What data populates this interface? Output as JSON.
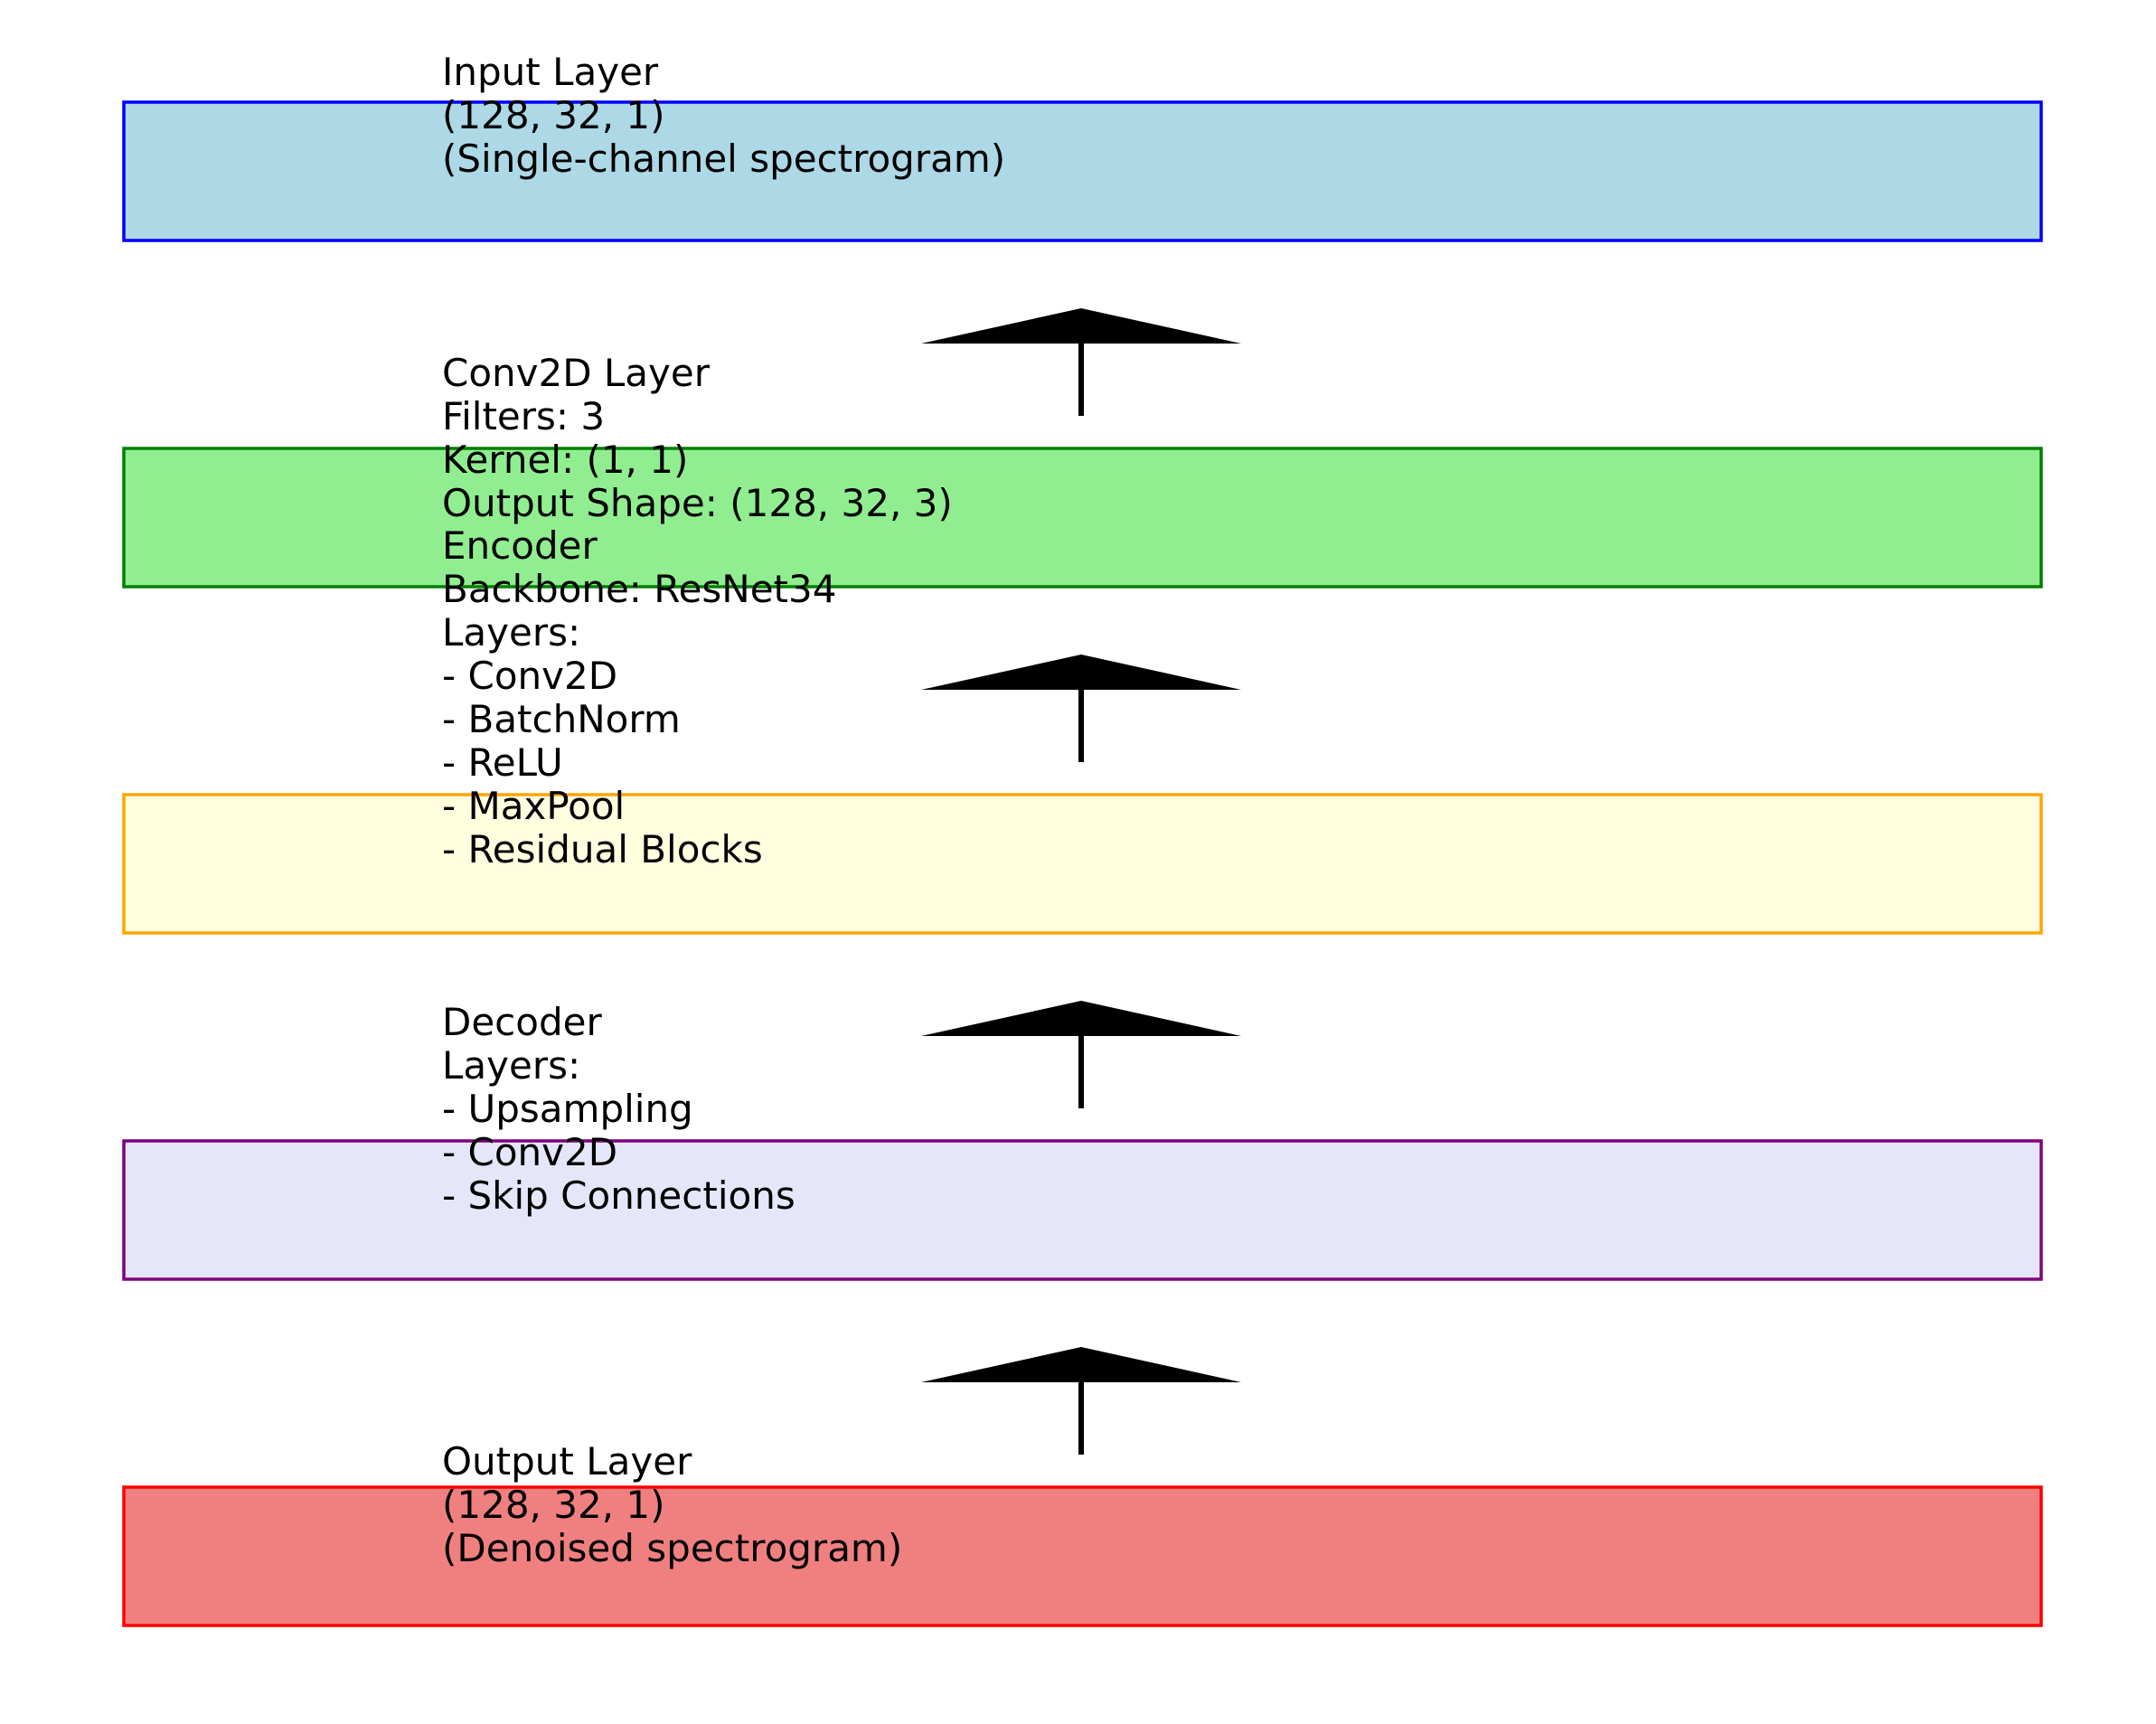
{
  "blocks": [
    {
      "id": "input-layer",
      "fill": "#add8e6",
      "stroke": "#0000ff",
      "lines": [
        "Input Layer",
        "(128, 32, 1)",
        "(Single-channel spectrogram)"
      ]
    },
    {
      "id": "conv2d-layer",
      "fill": "#90ee90",
      "stroke": "#008000",
      "lines": [
        "Conv2D Layer",
        "Filters: 3",
        "Kernel: (1, 1)",
        "Output Shape: (128, 32, 3)"
      ]
    },
    {
      "id": "encoder",
      "fill": "#ffffe0",
      "stroke": "#ffa500",
      "lines": [
        "Encoder",
        "Backbone: ResNet34",
        "Layers:",
        "- Conv2D",
        "- BatchNorm",
        "- ReLU",
        "- MaxPool",
        "- Residual Blocks"
      ]
    },
    {
      "id": "decoder",
      "fill": "#e6e6fa",
      "stroke": "#800080",
      "lines": [
        "Decoder",
        "Layers:",
        "- Upsampling",
        "- Conv2D",
        "- Skip Connections"
      ]
    },
    {
      "id": "output-layer",
      "fill": "#f08080",
      "stroke": "#ff0000",
      "lines": [
        "Output Layer",
        "(128, 32, 1)",
        "(Denoised spectrogram)"
      ]
    }
  ],
  "arrow_color": "#000000"
}
